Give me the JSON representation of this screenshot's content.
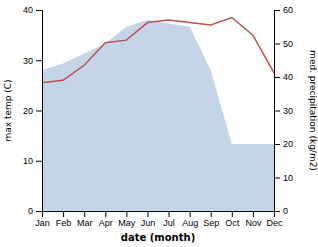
{
  "chart_data": {
    "type": "line",
    "categories": [
      "Jan",
      "Feb",
      "Mar",
      "Apr",
      "May",
      "Jun",
      "Jul",
      "Aug",
      "Sep",
      "Oct",
      "Nov",
      "Dec"
    ],
    "xlabel": "date (month)",
    "ylabel": "max temp (C)",
    "y2label": "med. precipitation (kg/m2)",
    "ylim": [
      0,
      40
    ],
    "yticks": [
      0,
      10,
      20,
      30,
      40
    ],
    "y2lim": [
      0,
      60
    ],
    "y2ticks": [
      0,
      10,
      20,
      30,
      40,
      50,
      60
    ],
    "grid": false,
    "series": [
      {
        "type": "area",
        "axis": "y2",
        "color": "#c5d5e8",
        "values": [
          42.0,
          44.0,
          47.0,
          50.0,
          55.0,
          57.0,
          56.0,
          55.0,
          42.0,
          20.0,
          20.0,
          20.0
        ]
      },
      {
        "type": "line",
        "color": "#c0504d",
        "values": [
          25.5,
          26.0,
          29.0,
          33.5,
          34.0,
          37.5,
          38.0,
          37.5,
          37.0,
          38.5,
          35.0,
          27.5
        ]
      }
    ]
  }
}
